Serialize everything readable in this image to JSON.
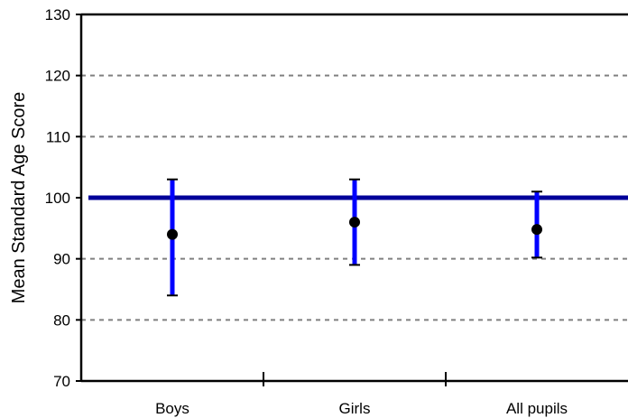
{
  "chart_data": {
    "type": "scatter",
    "title": "",
    "xlabel": "",
    "ylabel": "Mean Standard Age Score",
    "ylim": [
      70,
      130
    ],
    "yticks": [
      70,
      80,
      90,
      100,
      110,
      120,
      130
    ],
    "categories": [
      "Boys",
      "Girls",
      "All pupils"
    ],
    "series": [
      {
        "values": [
          94,
          96,
          94.8
        ],
        "error_low": [
          84,
          89,
          90.2
        ],
        "error_high": [
          103,
          103,
          101
        ],
        "marker_color": "#000000",
        "error_bar_color": "#0000ff"
      }
    ],
    "reference_line": {
      "y": 100,
      "color": "#000099"
    },
    "grid": {
      "horizontal": true,
      "style": "dashed",
      "color": "#808080"
    },
    "legend": "none"
  }
}
